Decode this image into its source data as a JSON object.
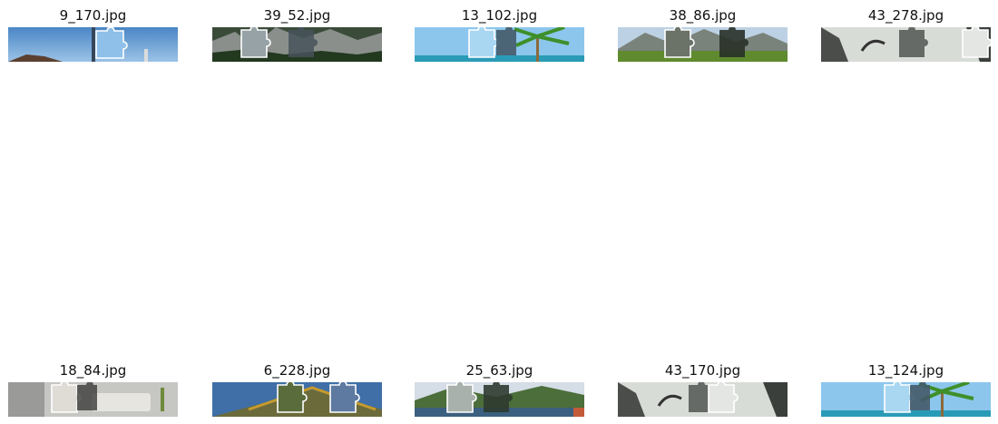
{
  "tiles": [
    {
      "caption": "9_170.jpg",
      "scene": "sky-beach",
      "piece": "puzzle-piece-icon"
    },
    {
      "caption": "39_52.jpg",
      "scene": "mountain-forest",
      "piece": "puzzle-piece-icon"
    },
    {
      "caption": "13_102.jpg",
      "scene": "palm-sea",
      "piece": "puzzle-piece-icon"
    },
    {
      "caption": "38_86.jpg",
      "scene": "mountain-meadow",
      "piece": "puzzle-piece-icon"
    },
    {
      "caption": "43_278.jpg",
      "scene": "snowy-goat",
      "piece": "puzzle-piece-icon"
    },
    {
      "caption": "18_84.jpg",
      "scene": "living-room",
      "piece": "puzzle-piece-icon"
    },
    {
      "caption": "6_228.jpg",
      "scene": "pagoda-roof",
      "piece": "puzzle-piece-icon"
    },
    {
      "caption": "25_63.jpg",
      "scene": "valley-lake",
      "piece": "puzzle-piece-icon"
    },
    {
      "caption": "43_170.jpg",
      "scene": "snowy-goat",
      "piece": "puzzle-piece-icon"
    },
    {
      "caption": "13_124.jpg",
      "scene": "palm-sea",
      "piece": "puzzle-piece-icon"
    }
  ]
}
